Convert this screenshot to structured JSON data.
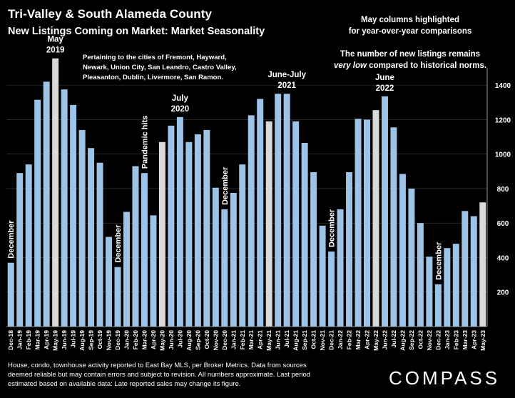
{
  "header": {
    "title": "Tri-Valley & South Alameda County",
    "subtitle": "New Listings Coming on Market: Market Seasonality"
  },
  "notes": {
    "may_highlight_line1": "May columns highlighted",
    "may_highlight_line2": "for year-over-year comparisons",
    "low_line1": "The number of new listings remains",
    "low_line2_em": "very low",
    "low_line2_rest": " compared to historical norms.",
    "cities_line1": "Pertaining to the cities of Fremont, Hayward,",
    "cities_line2": "Newark, Union City, San Leandro, Castro Valley,",
    "cities_line3": "Pleasanton, Dublin, Livermore, San Ramon."
  },
  "footnote": {
    "line1": "House, condo, townhouse activity reported to East Bay MLS, per Broker Metrics. Data from sources",
    "line2": "deemed reliable but may contain errors and subject to revision. All numbers approximate. Last period",
    "line3": "estimated based on available data: Late reported sales may change its figure."
  },
  "logo": "COMPASS",
  "colors": {
    "bar": "#9DC3E6",
    "highlight": "#D9D9D9",
    "background": "#000000",
    "gridline": "#404040"
  },
  "chart_data": {
    "type": "bar",
    "title": "New Listings Coming on Market: Market Seasonality",
    "ylim": [
      0,
      1500
    ],
    "y_ticks": [
      200,
      400,
      600,
      800,
      1000,
      1200,
      1400
    ],
    "y_axis_side": "right",
    "grid": true,
    "categories": [
      "Dec-18",
      "Jan-19",
      "Feb-19",
      "Mar-19",
      "Apr-19",
      "May-19",
      "Jun-19",
      "Jul-19",
      "Aug-19",
      "Sep-19",
      "Oct-19",
      "Nov-19",
      "Dec-19",
      "Jan-20",
      "Feb-20",
      "Mar-20",
      "Apr-20",
      "May-20",
      "Jun-20",
      "Jul-20",
      "Aug-20",
      "Sep-20",
      "Oct-20",
      "Nov-20",
      "Dec-20",
      "Jan-21",
      "Feb-21",
      "Mar-21",
      "Apr-21",
      "May-21",
      "Jun-21",
      "Jul-21",
      "Aug-21",
      "Sep-21",
      "Oct-21",
      "Nov-21",
      "Dec-21",
      "Jan-22",
      "Feb-22",
      "Mar-22",
      "Apr-22",
      "May-22",
      "Jun-22",
      "Jul-22",
      "Aug-22",
      "Sep-22",
      "Oct-22",
      "Nov-22",
      "Dec-22",
      "Jan-23",
      "Feb-23",
      "Mar-23",
      "Apr-23",
      "May-23"
    ],
    "values": [
      370,
      890,
      940,
      1315,
      1420,
      1555,
      1375,
      1285,
      1140,
      1035,
      950,
      520,
      345,
      665,
      930,
      890,
      645,
      1070,
      1165,
      1215,
      1070,
      1115,
      1140,
      805,
      680,
      775,
      940,
      1225,
      1320,
      1190,
      1350,
      1350,
      1190,
      1065,
      895,
      585,
      435,
      680,
      895,
      1205,
      1200,
      1255,
      1335,
      1155,
      885,
      800,
      600,
      405,
      245,
      455,
      480,
      670,
      640,
      720
    ],
    "highlighted": [
      "May-19",
      "May-20",
      "May-21",
      "May-22",
      "May-23"
    ],
    "annotations": [
      {
        "category": "Dec-18",
        "text": "December",
        "orientation": "vertical"
      },
      {
        "category": "May-19",
        "text": "May 2019",
        "lines": [
          "May",
          "2019"
        ]
      },
      {
        "category": "Dec-19",
        "text": "December",
        "orientation": "vertical"
      },
      {
        "category": "Mar-20",
        "text": "Pandemic hits",
        "orientation": "vertical"
      },
      {
        "category": "Jul-20",
        "text": "July 2020",
        "lines": [
          "July",
          "2020"
        ]
      },
      {
        "category": "Dec-20",
        "text": "December",
        "orientation": "vertical"
      },
      {
        "category": "Jul-21",
        "text": "June-July 2021",
        "lines": [
          "June-July",
          "2021"
        ]
      },
      {
        "category": "Dec-21",
        "text": "December",
        "orientation": "vertical"
      },
      {
        "category": "Jun-22",
        "text": "June 2022",
        "lines": [
          "June",
          "2022"
        ]
      },
      {
        "category": "Dec-22",
        "text": "December",
        "orientation": "vertical"
      }
    ]
  }
}
